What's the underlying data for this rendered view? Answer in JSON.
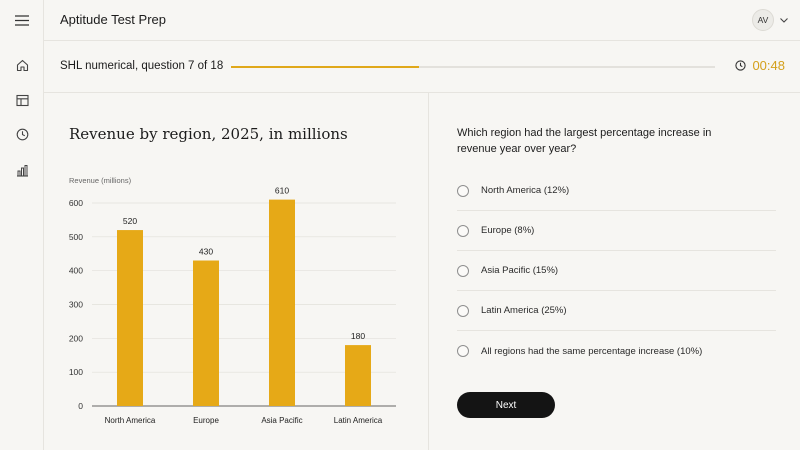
{
  "header": {
    "title": "Aptitude Test Prep",
    "avatar_initials": "AV"
  },
  "sidebar": {
    "items": [
      {
        "name": "home",
        "icon": "home-icon"
      },
      {
        "name": "layout",
        "icon": "table-icon"
      },
      {
        "name": "history",
        "icon": "clock-icon"
      },
      {
        "name": "stats",
        "icon": "bar-chart-icon"
      }
    ]
  },
  "progress": {
    "label": "SHL numerical, question 7 of 18",
    "fraction": 0.3889,
    "timer": "00:48"
  },
  "colors": {
    "accent": "#e0a81a",
    "timer": "#d4a01c",
    "button": "#141414"
  },
  "chart_data": {
    "type": "bar",
    "title": "Revenue by region, 2025, in millions",
    "ylabel": "Revenue (millions)",
    "xlabel": "",
    "categories": [
      "North America",
      "Europe",
      "Asia Pacific",
      "Latin America"
    ],
    "values": [
      520,
      430,
      610,
      180
    ],
    "ylim": [
      0,
      600
    ],
    "yticks": [
      0,
      100,
      200,
      300,
      400,
      500,
      600
    ],
    "grid": true,
    "data_labels": true,
    "bar_color": "#e6a917"
  },
  "question": {
    "text": "Which region had the largest percentage increase in revenue year over year?",
    "options": [
      "North America (12%)",
      "Europe (8%)",
      "Asia Pacific (15%)",
      "Latin America (25%)",
      "All regions had the same percentage increase (10%)"
    ],
    "next_label": "Next"
  }
}
